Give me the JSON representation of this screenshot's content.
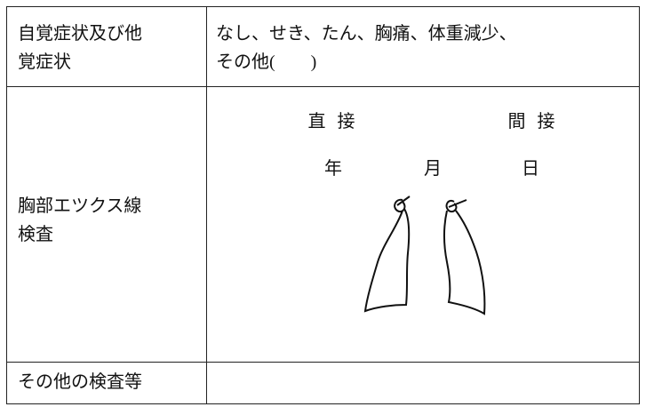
{
  "rows": [
    {
      "label": [
        "自覚症状及び他",
        "覚症状"
      ],
      "content": [
        "なし、せき、たん、胸痛、体重減少、",
        "その他(　　)"
      ]
    },
    {
      "label": [
        "胸部エツクス線",
        "検査"
      ],
      "xray_types": [
        "直 接",
        "間 接"
      ],
      "date_units": [
        "年",
        "月",
        "日"
      ]
    },
    {
      "label": [
        "その他の検査等"
      ]
    }
  ]
}
